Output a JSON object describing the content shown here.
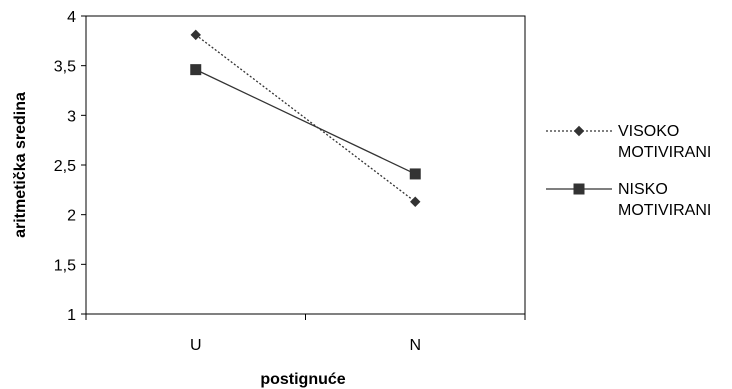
{
  "chart_data": {
    "type": "line",
    "title": "",
    "xlabel": "postignuće",
    "ylabel": "aritmetička sredina",
    "categories": [
      "U",
      "N"
    ],
    "ylim": [
      1,
      4
    ],
    "yticks": [
      "1",
      "1,5",
      "2",
      "2,5",
      "3",
      "3,5",
      "4"
    ],
    "grid": false,
    "legend_position": "right",
    "series": [
      {
        "name": "VISOKO MOTIVIRANI",
        "name_lines": [
          "VISOKO",
          "MOTIVIRANI"
        ],
        "values": [
          3.81,
          2.13
        ],
        "marker": "diamond",
        "line_style": "dotted",
        "color": "#333333"
      },
      {
        "name": "NISKO MOTIVIRANI",
        "name_lines": [
          "NISKO",
          "MOTIVIRANI"
        ],
        "values": [
          3.46,
          2.41
        ],
        "marker": "square",
        "line_style": "solid",
        "color": "#333333"
      }
    ]
  }
}
